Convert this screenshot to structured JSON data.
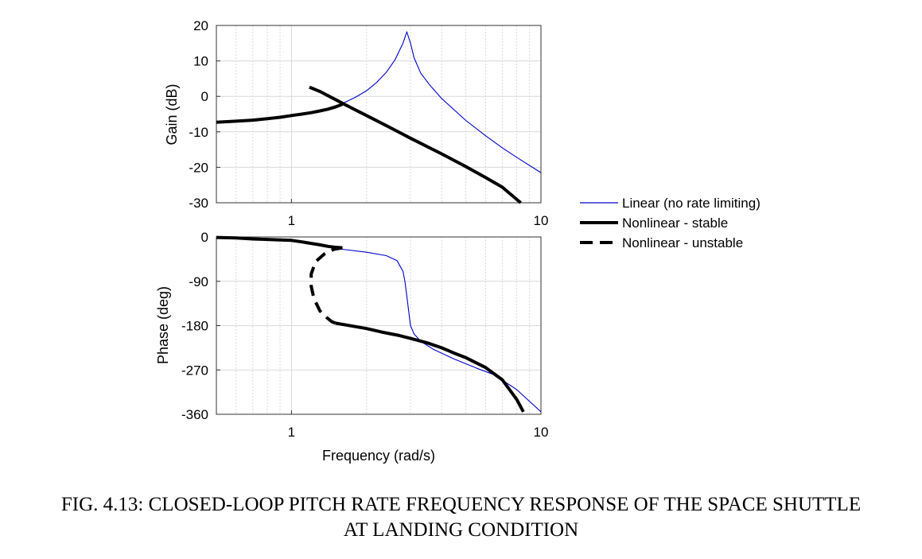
{
  "caption": {
    "line1": "FIG. 4.13: CLOSED-LOOP PITCH RATE FREQUENCY RESPONSE OF THE SPACE SHUTTLE",
    "line2": "AT LANDING CONDITION"
  },
  "colors": {
    "linear": "#0000cc",
    "nonlinear": "#000000",
    "grid": "#d9d9d9",
    "axes": "#333333"
  },
  "legend": {
    "placement": "right",
    "entries": [
      {
        "label": "Linear (no rate limiting)",
        "style": "thin-blue"
      },
      {
        "label": "Nonlinear - stable",
        "style": "thick-solid"
      },
      {
        "label": "Nonlinear - unstable",
        "style": "thick-dashed"
      }
    ]
  },
  "chart_data": [
    {
      "type": "line",
      "panel": "gain",
      "xlabel": "",
      "ylabel": "Gain (dB)",
      "xscale": "log",
      "xlim": [
        0.5,
        10
      ],
      "ylim": [
        -30,
        20
      ],
      "xticks": [
        {
          "v": 1,
          "label": "1"
        },
        {
          "v": 10,
          "label": "10"
        }
      ],
      "yticks": [
        20,
        10,
        0,
        -10,
        -20,
        -30
      ],
      "grid": true,
      "series": [
        {
          "name": "Linear (no rate limiting)",
          "style": "thin-blue",
          "x": [
            0.5,
            0.6,
            0.7,
            0.8,
            0.9,
            1.0,
            1.2,
            1.4,
            1.6,
            1.8,
            2.0,
            2.2,
            2.4,
            2.6,
            2.8,
            2.9,
            3.0,
            3.1,
            3.3,
            3.6,
            4.0,
            5.0,
            6.0,
            7.0,
            8.0,
            10.0
          ],
          "y": [
            -7.3,
            -7.0,
            -6.7,
            -6.3,
            -5.8,
            -5.3,
            -4.4,
            -3.3,
            -2.0,
            -0.3,
            1.6,
            4.0,
            6.8,
            10.3,
            15.0,
            18.2,
            15.0,
            10.9,
            6.5,
            3.0,
            -0.6,
            -6.8,
            -11.1,
            -14.5,
            -17.2,
            -21.5
          ]
        },
        {
          "name": "Nonlinear - stable",
          "style": "thick-solid",
          "x": [
            0.5,
            0.6,
            0.7,
            0.8,
            0.9,
            1.0,
            1.1,
            1.2,
            1.3,
            1.4,
            1.5,
            1.55,
            1.6
          ],
          "y": [
            -7.3,
            -7.0,
            -6.7,
            -6.3,
            -5.9,
            -5.4,
            -5.0,
            -4.6,
            -4.1,
            -3.6,
            -3.0,
            -2.6,
            -2.2
          ]
        },
        {
          "name": "Nonlinear - stable (branch)",
          "style": "thick-solid",
          "x": [
            1.18,
            1.3,
            1.5,
            1.7,
            2.0,
            2.5,
            3.0,
            4.0,
            5.0,
            6.0,
            7.0,
            8.3
          ],
          "y": [
            2.6,
            1.4,
            -0.9,
            -2.9,
            -5.4,
            -8.9,
            -11.8,
            -16.2,
            -19.8,
            -22.9,
            -25.6,
            -30.0
          ]
        }
      ]
    },
    {
      "type": "line",
      "panel": "phase",
      "xlabel": "Frequency (rad/s)",
      "ylabel": "Phase (deg)",
      "xscale": "log",
      "xlim": [
        0.5,
        10
      ],
      "ylim": [
        -360,
        0
      ],
      "xticks": [
        {
          "v": 1,
          "label": "1"
        },
        {
          "v": 10,
          "label": "10"
        }
      ],
      "yticks": [
        0,
        -90,
        -180,
        -270,
        -360
      ],
      "grid": true,
      "series": [
        {
          "name": "Linear (no rate limiting)",
          "style": "thin-blue",
          "x": [
            0.5,
            0.7,
            1.0,
            1.3,
            1.6,
            2.0,
            2.4,
            2.65,
            2.8,
            2.85,
            2.9,
            2.95,
            3.0,
            3.1,
            3.3,
            3.7,
            4.5,
            5.5,
            6.5,
            8.0,
            10.0
          ],
          "y": [
            -1,
            -4,
            -9,
            -15,
            -25,
            -31,
            -38,
            -48,
            -70,
            -90,
            -120,
            -150,
            -180,
            -197,
            -212,
            -228,
            -248,
            -266,
            -280,
            -310,
            -355
          ]
        },
        {
          "name": "Nonlinear - stable",
          "style": "thick-solid",
          "x": [
            0.5,
            0.6,
            0.7,
            0.8,
            0.9,
            1.0,
            1.1,
            1.2,
            1.3,
            1.4,
            1.5,
            1.6
          ],
          "y": [
            -1,
            -2,
            -4,
            -5,
            -6,
            -7,
            -10,
            -13,
            -16,
            -19,
            -21,
            -22
          ]
        },
        {
          "name": "Nonlinear - stable (branch)",
          "style": "thick-solid",
          "x": [
            1.5,
            1.8,
            2.0,
            2.3,
            2.7,
            3.0,
            3.5,
            4.0,
            4.5,
            5.0,
            6.0,
            7.0,
            8.0,
            8.5
          ],
          "y": [
            -175,
            -182,
            -186,
            -193,
            -200,
            -206,
            -215,
            -225,
            -236,
            -245,
            -265,
            -290,
            -330,
            -355
          ]
        },
        {
          "name": "Nonlinear - unstable",
          "style": "thick-dashed",
          "x": [
            1.6,
            1.48,
            1.35,
            1.25,
            1.2,
            1.2,
            1.23,
            1.3,
            1.38,
            1.45,
            1.5
          ],
          "y": [
            -22,
            -25,
            -35,
            -50,
            -75,
            -100,
            -125,
            -150,
            -163,
            -172,
            -175
          ]
        }
      ]
    }
  ]
}
